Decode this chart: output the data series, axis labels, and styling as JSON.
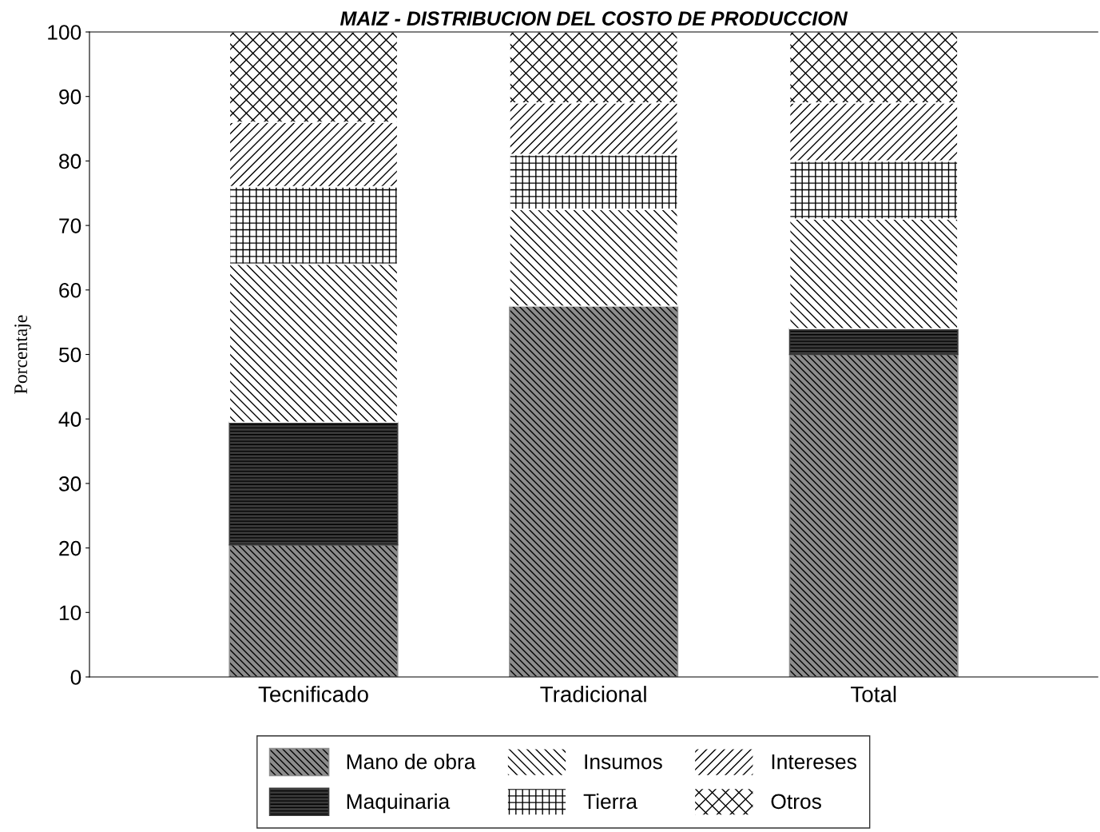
{
  "chart_data": {
    "type": "bar",
    "stacked": true,
    "title": "MAIZ - DISTRIBUCION DEL COSTO DE PRODUCCION",
    "ylabel": "Porcentaje",
    "categories": [
      "Tecnificado",
      "Tradicional",
      "Total"
    ],
    "series": [
      {
        "name": "Mano de obra",
        "color": "#8c8c8c",
        "values": [
          20.5,
          57.5,
          50
        ]
      },
      {
        "name": "Maquinaria",
        "color": "#3a3a3a",
        "values": [
          19,
          0,
          4
        ]
      },
      {
        "name": "Insumos",
        "color": "#ffffff",
        "values": [
          24.5,
          15,
          17
        ]
      },
      {
        "name": "Tierra",
        "color": "#ffffff",
        "values": [
          12,
          8.5,
          9
        ]
      },
      {
        "name": "Intereses",
        "color": "#ffffff",
        "values": [
          10,
          8,
          9
        ]
      },
      {
        "name": "Otros",
        "color": "#ffffff",
        "values": [
          14,
          11,
          11
        ]
      }
    ],
    "ylim": [
      0,
      100
    ],
    "yticks": [
      0,
      10,
      20,
      30,
      40,
      50,
      60,
      70,
      80,
      90,
      100
    ],
    "grid": false,
    "legend": "bottom"
  }
}
